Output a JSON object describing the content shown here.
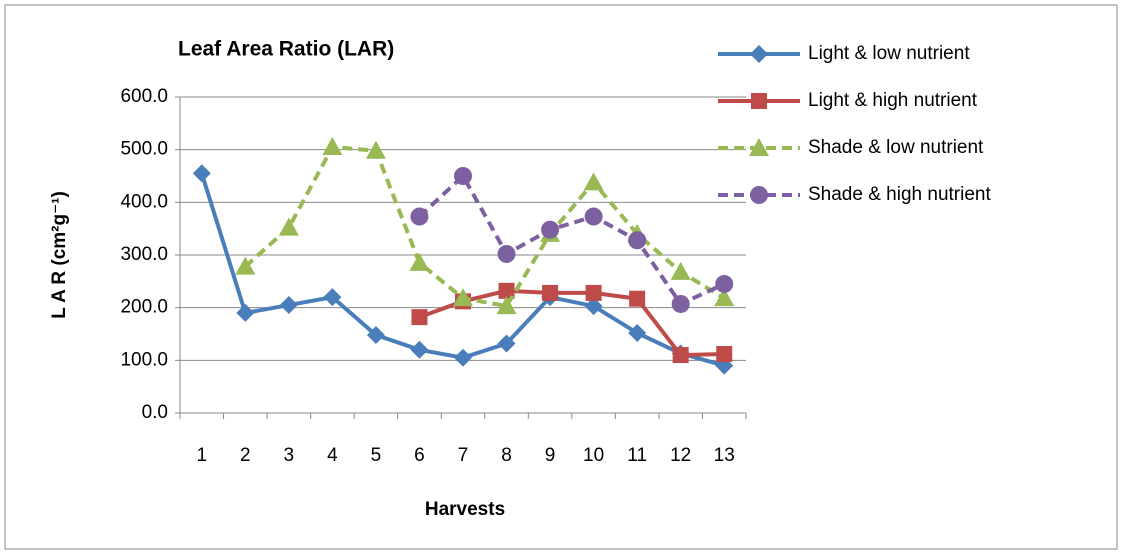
{
  "chart_data": {
    "type": "line",
    "title": "Leaf Area Ratio (LAR)",
    "x_label": "Harvests",
    "y_label": "L A R (cm²g⁻¹)",
    "categories": [
      "1",
      "2",
      "3",
      "4",
      "5",
      "6",
      "7",
      "8",
      "9",
      "10",
      "11",
      "12",
      "13"
    ],
    "series": [
      {
        "name": "Light & low nutrient",
        "color": "#4a7ebb",
        "marker": "diamond",
        "dashed": false,
        "values": [
          455,
          190,
          205,
          220,
          148,
          120,
          105,
          132,
          220,
          203,
          152,
          113,
          90
        ]
      },
      {
        "name": "Light & high nutrient",
        "color": "#be4b48",
        "marker": "square",
        "dashed": false,
        "values": [
          null,
          null,
          null,
          null,
          null,
          182,
          212,
          232,
          228,
          228,
          217,
          110,
          112
        ]
      },
      {
        "name": "Shade & low nutrient",
        "color": "#98b954",
        "marker": "triangle",
        "dashed": true,
        "values": [
          null,
          278,
          352,
          505,
          498,
          285,
          218,
          203,
          340,
          438,
          340,
          268,
          218
        ]
      },
      {
        "name": "Shade & high nutrient",
        "color": "#7d60a0",
        "marker": "circle",
        "dashed": true,
        "values": [
          null,
          null,
          null,
          null,
          null,
          373,
          450,
          302,
          348,
          373,
          328,
          207,
          245
        ]
      }
    ],
    "ylim": [
      0,
      600
    ],
    "yticks": [
      {
        "value": 0,
        "label": "0.0"
      },
      {
        "value": 100,
        "label": "100.0"
      },
      {
        "value": 200,
        "label": "200.0"
      },
      {
        "value": 300,
        "label": "300.0"
      },
      {
        "value": 400,
        "label": "400.0"
      },
      {
        "value": 500,
        "label": "500.0"
      },
      {
        "value": 600,
        "label": "600.0"
      }
    ],
    "grid": true,
    "legend": "right"
  }
}
